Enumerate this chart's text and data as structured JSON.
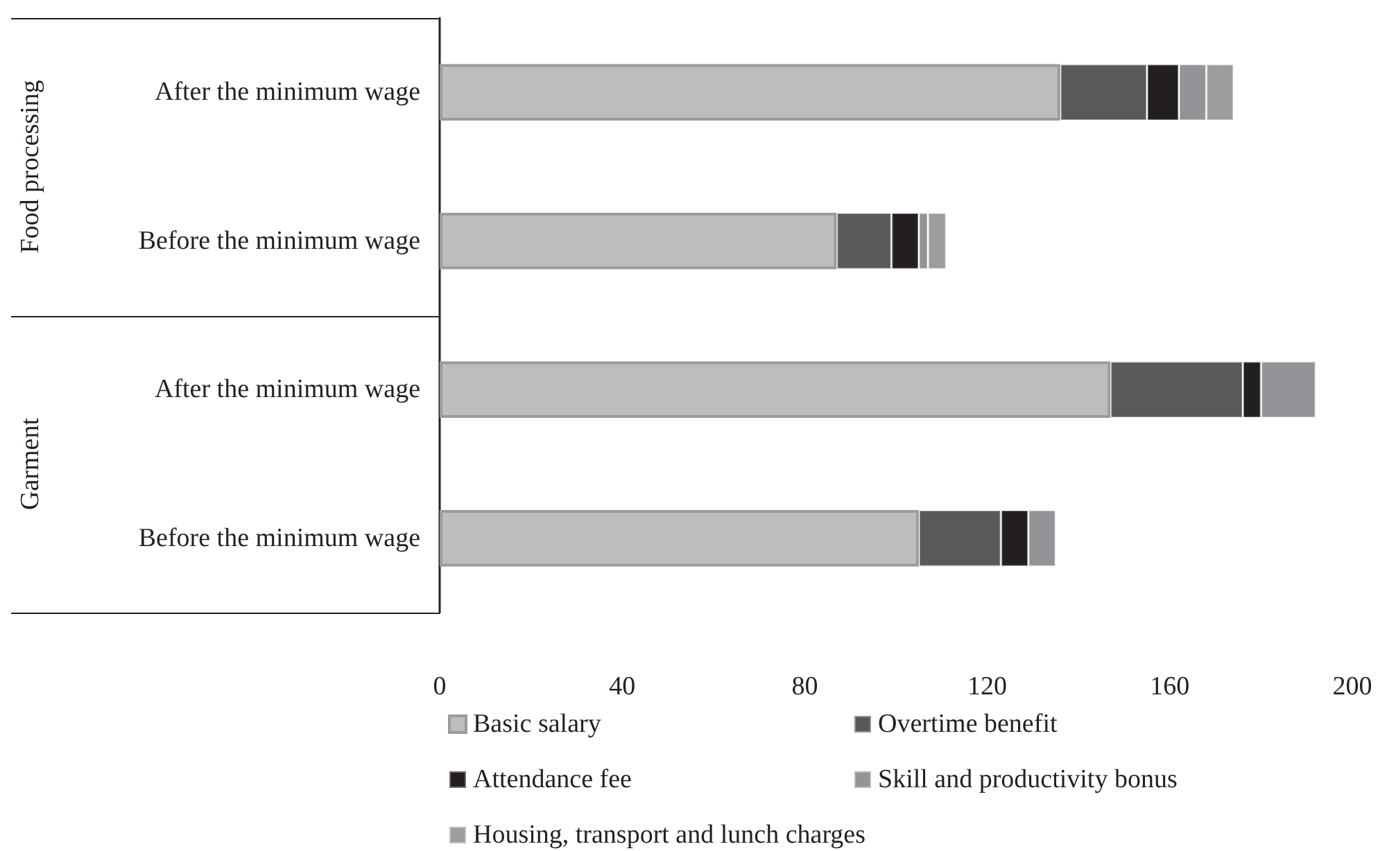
{
  "chart_data": {
    "type": "bar",
    "orientation": "horizontal",
    "stacked": true,
    "categories": [
      "After the minimum wage",
      "Before the minimum wage",
      "After the minimum wage",
      "Before the minimum wage"
    ],
    "series": [
      {
        "name": "Basic salary",
        "color": "#bcbdbf",
        "values": [
          136,
          87,
          147,
          105
        ]
      },
      {
        "name": "Overtime benefit",
        "color": "#58595b",
        "values": [
          19,
          12,
          29,
          18
        ]
      },
      {
        "name": "Attendance fee",
        "color": "#231f20",
        "values": [
          7,
          6,
          4,
          6
        ]
      },
      {
        "name": "Skill and productivity bonus",
        "color": "#929497",
        "values": [
          6,
          2,
          12,
          6
        ]
      },
      {
        "name": "Housing, transport and lunch charges",
        "color": "#9d9d9f",
        "values": [
          6,
          4,
          null,
          null
        ]
      }
    ],
    "xlim": [
      0,
      200
    ],
    "xticks": [
      0,
      40,
      80,
      120,
      160,
      200
    ],
    "grid": false,
    "legend": "bottom",
    "annotations": [
      "Food processing",
      "Garment"
    ]
  }
}
